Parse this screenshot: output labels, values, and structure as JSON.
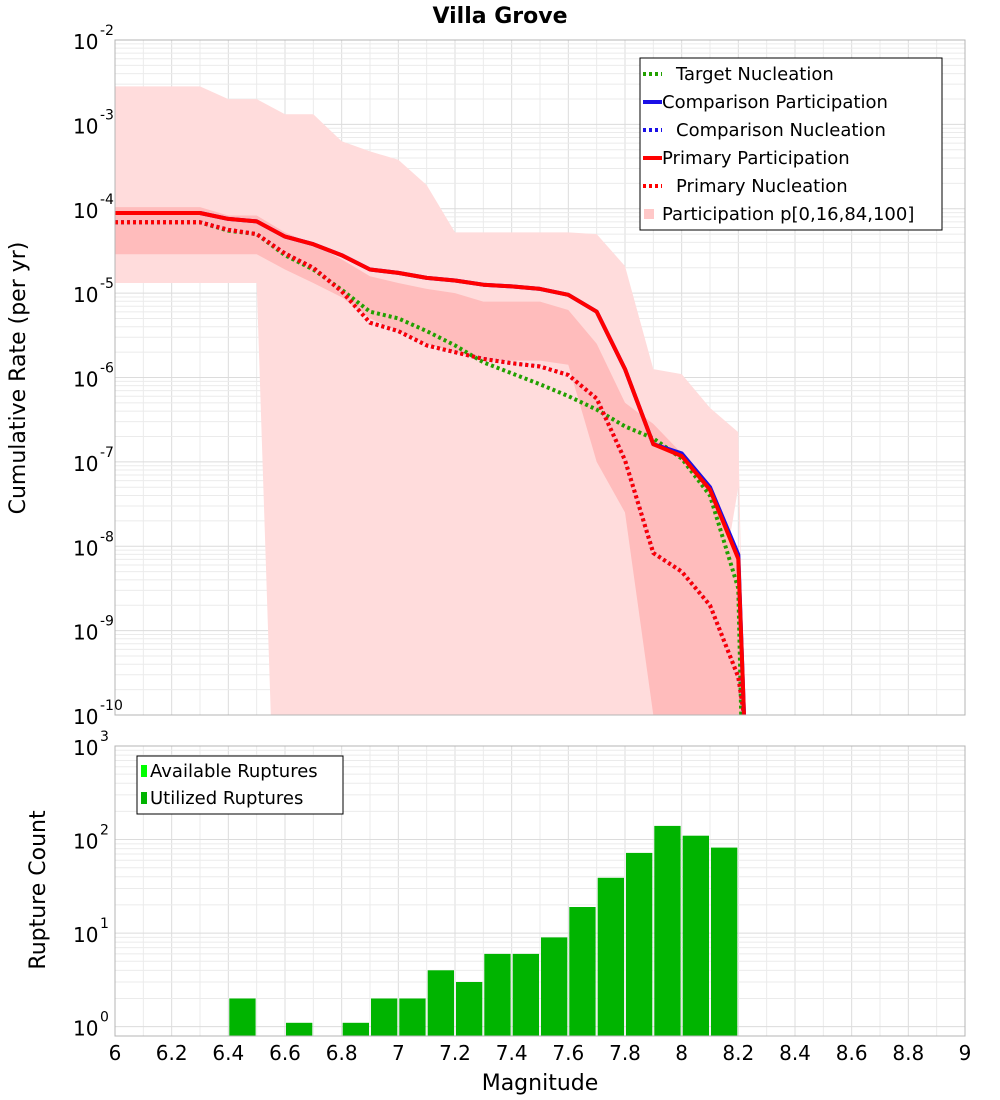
{
  "chart_data": [
    {
      "type": "line",
      "title": "Villa Grove",
      "xlabel": "Magnitude",
      "ylabel": "Cumulative Rate (per yr)",
      "xlim": [
        6,
        9
      ],
      "ylim_exp": [
        -10,
        -2
      ],
      "y_scale": "log",
      "y_tick_labels": [
        {
          "exp": -10,
          "base": "10",
          "sup": "-10"
        },
        {
          "exp": -9,
          "base": "10",
          "sup": "-9"
        },
        {
          "exp": -8,
          "base": "10",
          "sup": "-8"
        },
        {
          "exp": -7,
          "base": "10",
          "sup": "-7"
        },
        {
          "exp": -6,
          "base": "10",
          "sup": "-6"
        },
        {
          "exp": -5,
          "base": "10",
          "sup": "-5"
        },
        {
          "exp": -4,
          "base": "10",
          "sup": "-4"
        },
        {
          "exp": -3,
          "base": "10",
          "sup": "-3"
        },
        {
          "exp": -2,
          "base": "10",
          "sup": "-2"
        }
      ],
      "legend_position": "top-right",
      "legend": [
        {
          "label": "Target Nucleation",
          "color": "#22a000",
          "style": "dotted"
        },
        {
          "label": "Comparison Participation",
          "color": "#1a10e6",
          "style": "solid"
        },
        {
          "label": "Comparison Nucleation",
          "color": "#1a10e6",
          "style": "dotted"
        },
        {
          "label": "Primary Participation",
          "color": "#ff0000",
          "style": "solid"
        },
        {
          "label": "Primary Nucleation",
          "color": "#ff0000",
          "style": "dotted"
        },
        {
          "label": "Participation p[0,16,84,100]",
          "color": "#ffc8c8",
          "style": "fill"
        }
      ],
      "bands": [
        {
          "name": "Participation p[0,100]",
          "color": "#ffdcdc",
          "upper": [
            [
              6.0,
              -2.55
            ],
            [
              6.3,
              -2.55
            ],
            [
              6.4,
              -2.7
            ],
            [
              6.5,
              -2.7
            ],
            [
              6.6,
              -2.88
            ],
            [
              6.7,
              -2.88
            ],
            [
              6.8,
              -3.2
            ],
            [
              6.9,
              -3.32
            ],
            [
              7.0,
              -3.42
            ],
            [
              7.1,
              -3.72
            ],
            [
              7.2,
              -4.28
            ],
            [
              7.3,
              -4.28
            ],
            [
              7.4,
              -4.28
            ],
            [
              7.5,
              -4.28
            ],
            [
              7.6,
              -4.28
            ],
            [
              7.7,
              -4.3
            ],
            [
              7.8,
              -4.68
            ],
            [
              7.9,
              -5.9
            ],
            [
              8.0,
              -5.96
            ],
            [
              8.1,
              -6.36
            ],
            [
              8.2,
              -6.65
            ]
          ],
          "lower": [
            [
              6.0,
              -4.88
            ],
            [
              6.3,
              -4.88
            ],
            [
              6.4,
              -4.88
            ],
            [
              6.5,
              -4.88
            ],
            [
              6.55,
              -10
            ],
            [
              8.05,
              -10
            ],
            [
              8.1,
              -9.3
            ],
            [
              8.2,
              -7.3
            ],
            [
              8.22,
              -10
            ]
          ]
        },
        {
          "name": "Participation p[16,84]",
          "color": "#ffbcbc",
          "upper": [
            [
              6.0,
              -3.98
            ],
            [
              6.3,
              -3.98
            ],
            [
              6.4,
              -4.08
            ],
            [
              6.5,
              -4.08
            ],
            [
              6.6,
              -4.28
            ],
            [
              6.7,
              -4.42
            ],
            [
              6.8,
              -4.6
            ],
            [
              6.9,
              -4.8
            ],
            [
              7.0,
              -4.88
            ],
            [
              7.1,
              -4.95
            ],
            [
              7.2,
              -5.0
            ],
            [
              7.3,
              -5.1
            ],
            [
              7.4,
              -5.1
            ],
            [
              7.5,
              -5.1
            ],
            [
              7.6,
              -5.2
            ],
            [
              7.7,
              -5.6
            ],
            [
              7.8,
              -6.3
            ],
            [
              7.9,
              -6.55
            ],
            [
              8.0,
              -6.9
            ],
            [
              8.1,
              -7.35
            ],
            [
              8.2,
              -8.1
            ]
          ],
          "lower": [
            [
              6.0,
              -4.54
            ],
            [
              6.3,
              -4.54
            ],
            [
              6.4,
              -4.54
            ],
            [
              6.5,
              -4.54
            ],
            [
              6.6,
              -4.72
            ],
            [
              6.7,
              -4.88
            ],
            [
              6.8,
              -5.05
            ],
            [
              6.9,
              -5.3
            ],
            [
              7.0,
              -5.45
            ],
            [
              7.1,
              -5.6
            ],
            [
              7.2,
              -5.7
            ],
            [
              7.3,
              -5.8
            ],
            [
              7.4,
              -5.8
            ],
            [
              7.5,
              -5.8
            ],
            [
              7.6,
              -5.85
            ],
            [
              7.7,
              -7.0
            ],
            [
              7.8,
              -7.6
            ],
            [
              7.9,
              -10
            ],
            [
              8.1,
              -10
            ],
            [
              8.22,
              -10
            ]
          ]
        }
      ],
      "series": [
        {
          "name": "Target Nucleation",
          "color": "#22a000",
          "style": "dotted",
          "points": [
            [
              6.0,
              -4.16
            ],
            [
              6.3,
              -4.16
            ],
            [
              6.4,
              -4.26
            ],
            [
              6.5,
              -4.3
            ],
            [
              6.6,
              -4.55
            ],
            [
              6.7,
              -4.72
            ],
            [
              6.8,
              -4.96
            ],
            [
              6.9,
              -5.22
            ],
            [
              7.0,
              -5.3
            ],
            [
              7.1,
              -5.45
            ],
            [
              7.2,
              -5.62
            ],
            [
              7.3,
              -5.82
            ],
            [
              7.4,
              -5.95
            ],
            [
              7.5,
              -6.08
            ],
            [
              7.6,
              -6.22
            ],
            [
              7.7,
              -6.38
            ],
            [
              7.8,
              -6.58
            ],
            [
              7.9,
              -6.72
            ],
            [
              8.0,
              -6.96
            ],
            [
              8.1,
              -7.4
            ],
            [
              8.2,
              -8.5
            ],
            [
              8.21,
              -10
            ]
          ]
        },
        {
          "name": "Comparison Participation",
          "color": "#1a10e6",
          "style": "solid",
          "points": [
            [
              6.0,
              -4.05
            ],
            [
              6.3,
              -4.05
            ],
            [
              6.4,
              -4.12
            ],
            [
              6.5,
              -4.15
            ],
            [
              6.6,
              -4.33
            ],
            [
              6.7,
              -4.42
            ],
            [
              6.8,
              -4.55
            ],
            [
              6.9,
              -4.72
            ],
            [
              7.0,
              -4.76
            ],
            [
              7.1,
              -4.82
            ],
            [
              7.2,
              -4.85
            ],
            [
              7.3,
              -4.9
            ],
            [
              7.4,
              -4.92
            ],
            [
              7.5,
              -4.95
            ],
            [
              7.6,
              -5.02
            ],
            [
              7.7,
              -5.22
            ],
            [
              7.8,
              -5.9
            ],
            [
              7.9,
              -6.79
            ],
            [
              8.0,
              -6.9
            ],
            [
              8.1,
              -7.3
            ],
            [
              8.2,
              -8.1
            ],
            [
              8.22,
              -10
            ]
          ]
        },
        {
          "name": "Comparison Nucleation",
          "color": "#1a10e6",
          "style": "dotted",
          "points": [
            [
              6.0,
              -4.16
            ],
            [
              6.3,
              -4.16
            ],
            [
              6.4,
              -4.25
            ],
            [
              6.5,
              -4.3
            ],
            [
              6.6,
              -4.53
            ],
            [
              6.7,
              -4.7
            ],
            [
              6.8,
              -4.98
            ],
            [
              6.9,
              -5.35
            ],
            [
              7.0,
              -5.45
            ],
            [
              7.1,
              -5.62
            ],
            [
              7.2,
              -5.7
            ],
            [
              7.3,
              -5.78
            ],
            [
              7.4,
              -5.83
            ],
            [
              7.5,
              -5.87
            ],
            [
              7.6,
              -5.97
            ],
            [
              7.7,
              -6.25
            ],
            [
              7.8,
              -6.98
            ],
            [
              7.9,
              -8.08
            ],
            [
              8.0,
              -8.3
            ],
            [
              8.1,
              -8.7
            ],
            [
              8.2,
              -9.55
            ],
            [
              8.22,
              -10
            ]
          ]
        },
        {
          "name": "Primary Participation",
          "color": "#ff0000",
          "style": "solid",
          "points": [
            [
              6.0,
              -4.05
            ],
            [
              6.3,
              -4.05
            ],
            [
              6.4,
              -4.12
            ],
            [
              6.5,
              -4.15
            ],
            [
              6.6,
              -4.33
            ],
            [
              6.7,
              -4.42
            ],
            [
              6.8,
              -4.55
            ],
            [
              6.9,
              -4.72
            ],
            [
              7.0,
              -4.76
            ],
            [
              7.1,
              -4.82
            ],
            [
              7.2,
              -4.85
            ],
            [
              7.3,
              -4.9
            ],
            [
              7.4,
              -4.92
            ],
            [
              7.5,
              -4.95
            ],
            [
              7.6,
              -5.02
            ],
            [
              7.7,
              -5.22
            ],
            [
              7.8,
              -5.9
            ],
            [
              7.9,
              -6.79
            ],
            [
              8.0,
              -6.93
            ],
            [
              8.1,
              -7.33
            ],
            [
              8.2,
              -8.15
            ],
            [
              8.22,
              -10
            ]
          ]
        },
        {
          "name": "Primary Nucleation",
          "color": "#ff0000",
          "style": "dotted",
          "points": [
            [
              6.0,
              -4.16
            ],
            [
              6.3,
              -4.16
            ],
            [
              6.4,
              -4.25
            ],
            [
              6.5,
              -4.3
            ],
            [
              6.6,
              -4.53
            ],
            [
              6.7,
              -4.7
            ],
            [
              6.8,
              -4.98
            ],
            [
              6.9,
              -5.35
            ],
            [
              7.0,
              -5.45
            ],
            [
              7.1,
              -5.62
            ],
            [
              7.2,
              -5.7
            ],
            [
              7.3,
              -5.78
            ],
            [
              7.4,
              -5.83
            ],
            [
              7.5,
              -5.87
            ],
            [
              7.6,
              -5.97
            ],
            [
              7.7,
              -6.25
            ],
            [
              7.8,
              -6.98
            ],
            [
              7.9,
              -8.08
            ],
            [
              8.0,
              -8.3
            ],
            [
              8.1,
              -8.7
            ],
            [
              8.2,
              -9.55
            ],
            [
              8.22,
              -10
            ]
          ]
        }
      ]
    },
    {
      "type": "bar",
      "xlabel": "Magnitude",
      "ylabel": "Rupture Count",
      "xlim": [
        6,
        9
      ],
      "ylim_exp": [
        -0.1,
        3
      ],
      "y_scale": "log",
      "y_tick_labels": [
        {
          "exp": 0,
          "base": "10",
          "sup": "0"
        },
        {
          "exp": 1,
          "base": "10",
          "sup": "1"
        },
        {
          "exp": 2,
          "base": "10",
          "sup": "2"
        },
        {
          "exp": 3,
          "base": "10",
          "sup": "3"
        }
      ],
      "x_tick_labels": [
        "6",
        "6.2",
        "6.4",
        "6.6",
        "6.8",
        "7",
        "7.2",
        "7.4",
        "7.6",
        "7.8",
        "8",
        "8.2",
        "8.4",
        "8.6",
        "8.8",
        "9"
      ],
      "legend_position": "top-left",
      "legend": [
        {
          "label": "Available Ruptures",
          "color": "#00ff00"
        },
        {
          "label": "Utilized Ruptures",
          "color": "#00b400"
        }
      ],
      "bin_width": 0.1,
      "bars": [
        {
          "x": 6.45,
          "value": 2
        },
        {
          "x": 6.65,
          "value": 1.1
        },
        {
          "x": 6.85,
          "value": 1.1
        },
        {
          "x": 6.95,
          "value": 2
        },
        {
          "x": 7.05,
          "value": 2
        },
        {
          "x": 7.15,
          "value": 4
        },
        {
          "x": 7.25,
          "value": 3
        },
        {
          "x": 7.35,
          "value": 6
        },
        {
          "x": 7.45,
          "value": 6
        },
        {
          "x": 7.55,
          "value": 9
        },
        {
          "x": 7.65,
          "value": 19
        },
        {
          "x": 7.75,
          "value": 39
        },
        {
          "x": 7.85,
          "value": 72
        },
        {
          "x": 7.95,
          "value": 140
        },
        {
          "x": 8.05,
          "value": 110
        },
        {
          "x": 8.15,
          "value": 82
        }
      ],
      "bar_color": "#00b400"
    }
  ]
}
